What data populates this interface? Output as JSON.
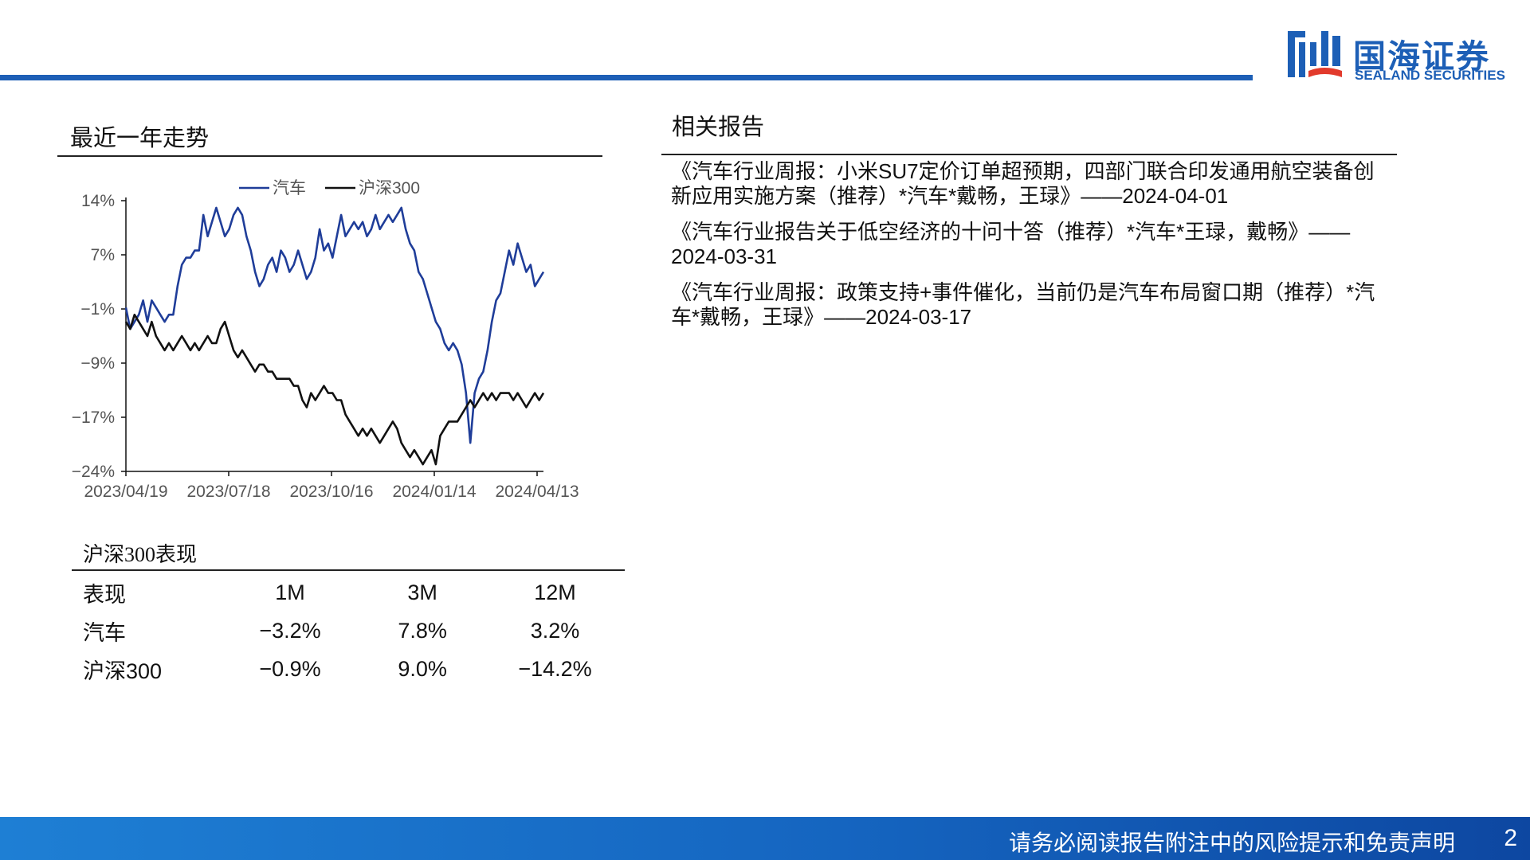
{
  "header": {
    "logo_cn": "国海证券",
    "logo_en": "SEALAND SECURITIES",
    "brand_color": "#1d5fb6"
  },
  "trend": {
    "title": "最近一年走势"
  },
  "chart_data": {
    "type": "line",
    "x_ticks": [
      "2023/04/19",
      "2023/07/18",
      "2023/10/16",
      "2024/01/14",
      "2024/04/13"
    ],
    "y_ticks": [
      "14%",
      "7%",
      "−1%",
      "−9%",
      "−17%",
      "−24%"
    ],
    "ylim": [
      -24,
      14
    ],
    "legend_position": "top",
    "series": [
      {
        "name": "汽车",
        "color": "#1f3d99",
        "values": [
          -1,
          -4,
          -3,
          -2,
          0,
          -3,
          0,
          -1,
          -2,
          -3,
          -2,
          -2,
          2,
          5,
          6,
          6,
          7,
          7,
          12,
          9,
          11,
          13,
          11,
          9,
          10,
          12,
          13,
          12,
          9,
          7,
          4,
          2,
          3,
          5,
          6,
          4,
          7,
          6,
          4,
          5,
          7,
          5,
          3,
          4,
          6,
          10,
          7,
          8,
          6,
          9,
          12,
          9,
          10,
          11,
          10,
          11,
          9,
          10,
          12,
          10,
          11,
          12,
          11,
          12,
          13,
          10,
          8,
          7,
          4,
          3,
          1,
          -1,
          -3,
          -4,
          -6,
          -7,
          -6,
          -7,
          -9,
          -13,
          -20,
          -13,
          -11,
          -10,
          -7,
          -3,
          0,
          1,
          4,
          7,
          5,
          8,
          6,
          4,
          5,
          2,
          3,
          4
        ]
      },
      {
        "name": "沪深300",
        "color": "#111111",
        "values": [
          -3,
          -4,
          -2,
          -3,
          -4,
          -5,
          -3,
          -5,
          -6,
          -7,
          -6,
          -7,
          -6,
          -5,
          -6,
          -7,
          -6,
          -7,
          -6,
          -5,
          -6,
          -6,
          -4,
          -3,
          -5,
          -7,
          -8,
          -7,
          -8,
          -9,
          -10,
          -9,
          -9,
          -10,
          -10,
          -11,
          -11,
          -11,
          -11,
          -12,
          -12,
          -14,
          -15,
          -13,
          -14,
          -13,
          -12,
          -13,
          -13,
          -14,
          -14,
          -16,
          -17,
          -18,
          -19,
          -18,
          -19,
          -18,
          -19,
          -20,
          -19,
          -18,
          -17,
          -18,
          -20,
          -21,
          -22,
          -21,
          -22,
          -23,
          -22,
          -21,
          -23,
          -19,
          -18,
          -17,
          -17,
          -17,
          -16,
          -15,
          -14,
          -15,
          -14,
          -13,
          -14,
          -13,
          -14,
          -13,
          -13,
          -13,
          -14,
          -13,
          -14,
          -15,
          -14,
          -13,
          -14,
          -13
        ]
      }
    ]
  },
  "performance": {
    "title": "沪深300表现",
    "headers": [
      "表现",
      "1M",
      "3M",
      "12M"
    ],
    "rows": [
      [
        "汽车",
        "−3.2%",
        "7.8%",
        "3.2%"
      ],
      [
        "沪深300",
        "−0.9%",
        "9.0%",
        "−14.2%"
      ]
    ]
  },
  "reports": {
    "title": "相关报告",
    "items": [
      "《汽车行业周报：小米SU7定价订单超预期，四部门联合印发通用航空装备创新应用实施方案（推荐）*汽车*戴畅，王琭》——2024-04-01",
      "《汽车行业报告关于低空经济的十问十答（推荐）*汽车*王琭，戴畅》——2024-03-31",
      "《汽车行业周报：政策支持+事件催化，当前仍是汽车布局窗口期（推荐）*汽车*戴畅，王琭》——2024-03-17"
    ]
  },
  "footer": {
    "disclaimer": "请务必阅读报告附注中的风险提示和免责声明",
    "page": "2"
  }
}
